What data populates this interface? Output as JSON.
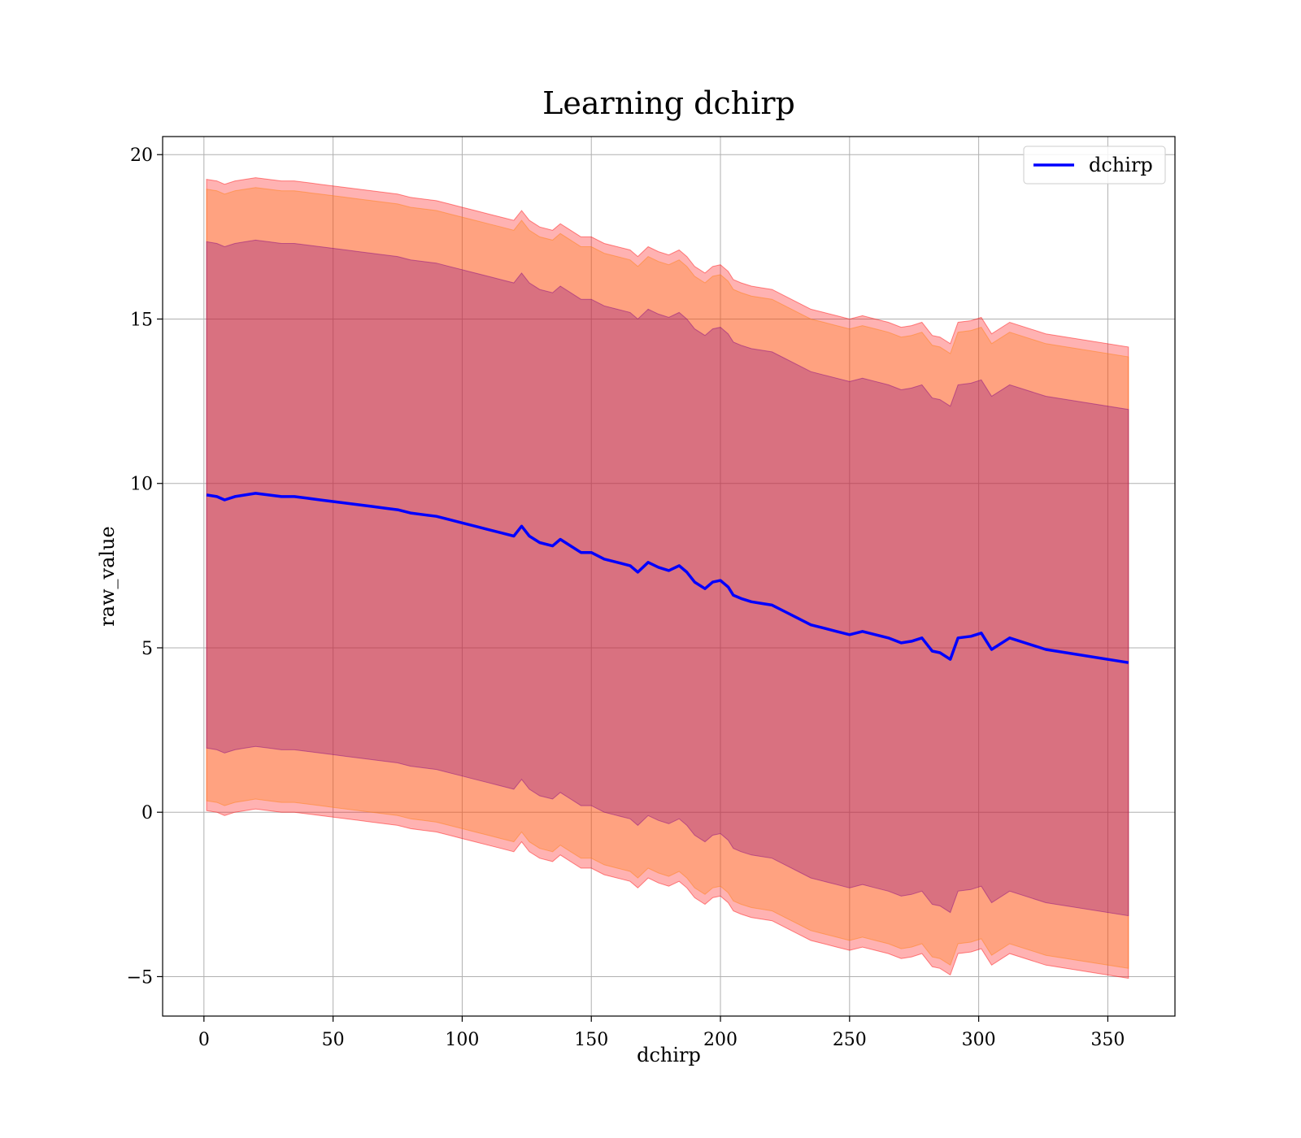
{
  "chart_data": {
    "type": "line",
    "title": "Learning dchirp",
    "xlabel": "dchirp",
    "ylabel": "raw_value",
    "xlim": [
      -16,
      376
    ],
    "ylim": [
      -6.2,
      20.55
    ],
    "xticks": [
      0,
      50,
      100,
      150,
      200,
      250,
      300,
      350
    ],
    "xtick_labels": [
      "0",
      "50",
      "100",
      "150",
      "200",
      "250",
      "300",
      "350"
    ],
    "yticks": [
      -5,
      0,
      5,
      10,
      15,
      20
    ],
    "ytick_labels": [
      "−5",
      "0",
      "5",
      "10",
      "15",
      "20"
    ],
    "grid": true,
    "legend": {
      "position": "top-right",
      "entries": [
        "dchirp"
      ]
    },
    "colors": {
      "line": "#0000ff",
      "band_outer": "#ff0000",
      "band_middle": "#ff7f0e",
      "band_inner": "#800080"
    },
    "series": [
      {
        "name": "dchirp",
        "x": [
          1,
          5,
          8,
          12,
          16,
          20,
          25,
          30,
          35,
          40,
          45,
          50,
          55,
          60,
          65,
          70,
          75,
          80,
          85,
          90,
          95,
          100,
          105,
          110,
          115,
          120,
          123,
          126,
          130,
          135,
          138,
          142,
          146,
          150,
          155,
          160,
          165,
          168,
          172,
          176,
          180,
          184,
          187,
          190,
          194,
          197,
          200,
          203,
          205,
          208,
          212,
          216,
          220,
          225,
          230,
          235,
          240,
          245,
          250,
          255,
          260,
          265,
          270,
          274,
          278,
          282,
          285,
          289,
          292,
          297,
          301,
          305,
          312,
          326,
          358
        ],
        "values": [
          9.65,
          9.6,
          9.5,
          9.6,
          9.65,
          9.7,
          9.65,
          9.6,
          9.6,
          9.55,
          9.5,
          9.45,
          9.4,
          9.35,
          9.3,
          9.25,
          9.2,
          9.1,
          9.05,
          9.0,
          8.9,
          8.8,
          8.7,
          8.6,
          8.5,
          8.4,
          8.7,
          8.4,
          8.2,
          8.1,
          8.3,
          8.1,
          7.9,
          7.9,
          7.7,
          7.6,
          7.5,
          7.3,
          7.6,
          7.45,
          7.35,
          7.5,
          7.3,
          7.0,
          6.8,
          7.0,
          7.05,
          6.85,
          6.6,
          6.5,
          6.4,
          6.35,
          6.3,
          6.1,
          5.9,
          5.7,
          5.6,
          5.5,
          5.4,
          5.5,
          5.4,
          5.3,
          5.15,
          5.2,
          5.3,
          4.9,
          4.85,
          4.65,
          5.3,
          5.35,
          5.45,
          4.95,
          5.3,
          4.95,
          4.55
        ]
      }
    ],
    "bands": [
      {
        "name": "outer",
        "half_width": [
          9.6,
          9.6,
          9.6,
          9.6,
          9.6,
          9.6,
          9.6,
          9.6,
          9.6,
          9.6,
          9.6,
          9.6,
          9.6,
          9.6,
          9.6,
          9.6,
          9.6,
          9.6,
          9.6,
          9.6,
          9.6,
          9.6,
          9.6,
          9.6,
          9.6,
          9.6,
          9.6,
          9.6,
          9.6,
          9.6,
          9.6,
          9.6,
          9.6,
          9.6,
          9.6,
          9.6,
          9.6,
          9.6,
          9.6,
          9.6,
          9.6,
          9.6,
          9.6,
          9.6,
          9.6,
          9.6,
          9.6,
          9.6,
          9.6,
          9.6,
          9.6,
          9.6,
          9.6,
          9.6,
          9.6,
          9.6,
          9.6,
          9.6,
          9.6,
          9.6,
          9.6,
          9.6,
          9.6,
          9.6,
          9.6,
          9.6,
          9.6,
          9.6,
          9.6,
          9.6,
          9.6,
          9.6,
          9.6,
          9.6,
          9.6
        ]
      },
      {
        "name": "middle",
        "half_width": [
          9.3,
          9.3,
          9.3,
          9.3,
          9.3,
          9.3,
          9.3,
          9.3,
          9.3,
          9.3,
          9.3,
          9.3,
          9.3,
          9.3,
          9.3,
          9.3,
          9.3,
          9.3,
          9.3,
          9.3,
          9.3,
          9.3,
          9.3,
          9.3,
          9.3,
          9.3,
          9.3,
          9.3,
          9.3,
          9.3,
          9.3,
          9.3,
          9.3,
          9.3,
          9.3,
          9.3,
          9.3,
          9.3,
          9.3,
          9.3,
          9.3,
          9.3,
          9.3,
          9.3,
          9.3,
          9.3,
          9.3,
          9.3,
          9.3,
          9.3,
          9.3,
          9.3,
          9.3,
          9.3,
          9.3,
          9.3,
          9.3,
          9.3,
          9.3,
          9.3,
          9.3,
          9.3,
          9.3,
          9.3,
          9.3,
          9.3,
          9.3,
          9.3,
          9.3,
          9.3,
          9.3,
          9.3,
          9.3,
          9.3,
          9.3
        ]
      },
      {
        "name": "inner",
        "half_width": [
          7.7,
          7.7,
          7.7,
          7.7,
          7.7,
          7.7,
          7.7,
          7.7,
          7.7,
          7.7,
          7.7,
          7.7,
          7.7,
          7.7,
          7.7,
          7.7,
          7.7,
          7.7,
          7.7,
          7.7,
          7.7,
          7.7,
          7.7,
          7.7,
          7.7,
          7.7,
          7.7,
          7.7,
          7.7,
          7.7,
          7.7,
          7.7,
          7.7,
          7.7,
          7.7,
          7.7,
          7.7,
          7.7,
          7.7,
          7.7,
          7.7,
          7.7,
          7.7,
          7.7,
          7.7,
          7.7,
          7.7,
          7.7,
          7.7,
          7.7,
          7.7,
          7.7,
          7.7,
          7.7,
          7.7,
          7.7,
          7.7,
          7.7,
          7.7,
          7.7,
          7.7,
          7.7,
          7.7,
          7.7,
          7.7,
          7.7,
          7.7,
          7.7,
          7.7,
          7.7,
          7.7,
          7.7,
          7.7,
          7.7,
          7.7
        ]
      }
    ]
  }
}
